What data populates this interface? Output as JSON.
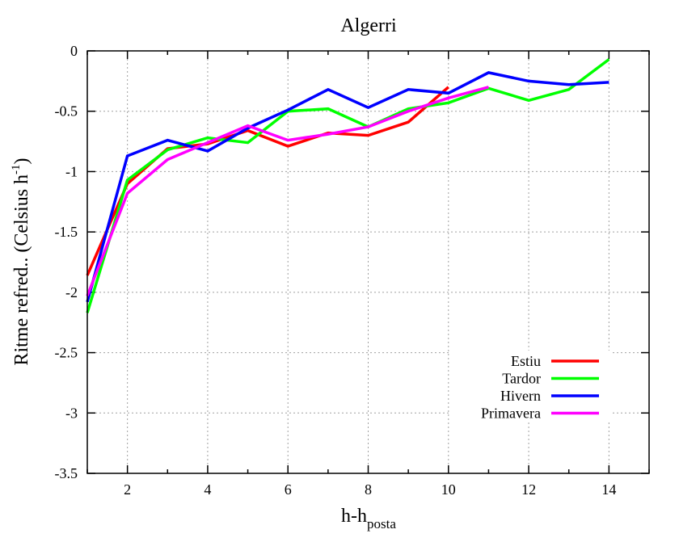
{
  "chart_data": {
    "type": "line",
    "title": "Algerri",
    "xlabel_main": "h-h",
    "xlabel_sub": "posta",
    "ylabel_main": "Ritme refred.. (Celsius h",
    "ylabel_sup": "-1",
    "ylabel_tail": ")",
    "xlim": [
      1,
      15
    ],
    "ylim": [
      -3.5,
      0
    ],
    "xticks": [
      2,
      4,
      6,
      8,
      10,
      12,
      14
    ],
    "yticks": [
      0,
      -0.5,
      -1,
      -1.5,
      -2,
      -2.5,
      -3,
      -3.5
    ],
    "ytick_labels": [
      "0",
      "-0.5",
      "-1",
      "-1.5",
      "-2",
      "-2.5",
      "-3",
      "-3.5"
    ],
    "grid": true,
    "legend_position": "bottom-right",
    "series": [
      {
        "name": "Estiu",
        "color": "#ff0000",
        "x": [
          1,
          2,
          3,
          4,
          5,
          6,
          7,
          8,
          9,
          10
        ],
        "y": [
          -1.86,
          -1.1,
          -0.81,
          -0.77,
          -0.66,
          -0.79,
          -0.68,
          -0.7,
          -0.59,
          -0.3
        ]
      },
      {
        "name": "Tardor",
        "color": "#00ff00",
        "x": [
          1,
          2,
          3,
          4,
          5,
          6,
          7,
          8,
          9,
          10,
          11,
          12,
          13,
          14
        ],
        "y": [
          -2.17,
          -1.07,
          -0.82,
          -0.72,
          -0.76,
          -0.5,
          -0.48,
          -0.63,
          -0.48,
          -0.43,
          -0.31,
          -0.41,
          -0.32,
          -0.07
        ]
      },
      {
        "name": "Hivern",
        "color": "#0000ff",
        "x": [
          1,
          2,
          3,
          4,
          5,
          6,
          7,
          8,
          9,
          10,
          11,
          12,
          13,
          14
        ],
        "y": [
          -2.08,
          -0.87,
          -0.74,
          -0.83,
          -0.64,
          -0.49,
          -0.32,
          -0.47,
          -0.32,
          -0.35,
          -0.18,
          -0.25,
          -0.28,
          -0.26
        ]
      },
      {
        "name": "Primavera",
        "color": "#ff00ff",
        "x": [
          1,
          2,
          3,
          4,
          5,
          6,
          7,
          8,
          9,
          10,
          11
        ],
        "y": [
          -2.03,
          -1.18,
          -0.9,
          -0.76,
          -0.62,
          -0.74,
          -0.69,
          -0.63,
          -0.5,
          -0.39,
          -0.3
        ]
      }
    ]
  }
}
